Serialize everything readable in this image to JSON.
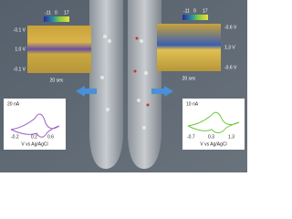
{
  "left": {
    "colorbar": [
      "-11",
      "0",
      "17"
    ],
    "potentials": [
      "-0.1 V",
      "1.0 V",
      "-0.1 V"
    ],
    "time": "20 sec",
    "cv": {
      "current": "20 nA",
      "ticks": [
        "-0.2",
        "0.2",
        "0.6"
      ],
      "axis": "V vs Ag/AgCl"
    }
  },
  "right": {
    "colorbar": [
      "-11",
      "0",
      "17"
    ],
    "potentials": [
      "-0.6 V",
      "1.3 V",
      "-0.6 V"
    ],
    "time": "20 sec",
    "cv": {
      "current": "10 nA",
      "ticks": [
        "-0.7",
        "0.3",
        "1.3"
      ],
      "axis": "V vs Ag/AgCl"
    }
  }
}
